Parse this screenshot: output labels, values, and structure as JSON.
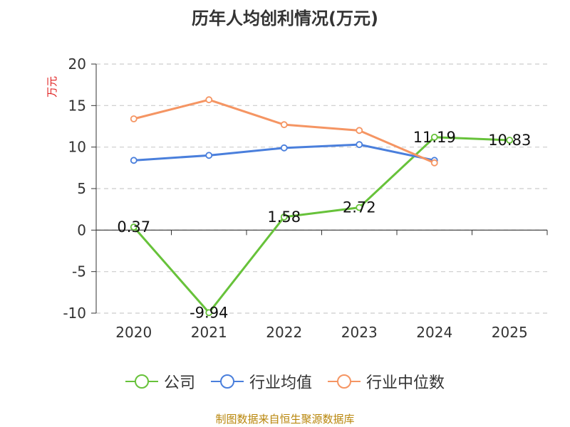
{
  "title": "历年人均创利情况(万元)",
  "source_text": "制图数据来自恒生聚源数据库",
  "legend": [
    {
      "label": "公司",
      "color": "#67c23a"
    },
    {
      "label": "行业均值",
      "color": "#4a7fdc"
    },
    {
      "label": "行业中位数",
      "color": "#f59563"
    }
  ],
  "chart_data": {
    "type": "line",
    "ylabel": "万元",
    "ylim": [
      -10,
      20
    ],
    "yticks": [
      20,
      15,
      10,
      5,
      0,
      -5,
      -10
    ],
    "categories": [
      "2020",
      "2021",
      "2022",
      "2023",
      "2024",
      "2025"
    ],
    "grid": true,
    "legend_position": "bottom",
    "series": [
      {
        "name": "公司",
        "color": "#67c23a",
        "values": [
          0.37,
          -9.94,
          1.58,
          2.72,
          11.19,
          10.83
        ],
        "show_labels": true
      },
      {
        "name": "行业均值",
        "color": "#4a7fdc",
        "values": [
          8.4,
          9.0,
          9.9,
          10.3,
          8.4,
          null
        ],
        "show_labels": false
      },
      {
        "name": "行业中位数",
        "color": "#f59563",
        "values": [
          13.4,
          15.7,
          12.7,
          12.0,
          8.1,
          null
        ],
        "show_labels": false
      }
    ]
  }
}
